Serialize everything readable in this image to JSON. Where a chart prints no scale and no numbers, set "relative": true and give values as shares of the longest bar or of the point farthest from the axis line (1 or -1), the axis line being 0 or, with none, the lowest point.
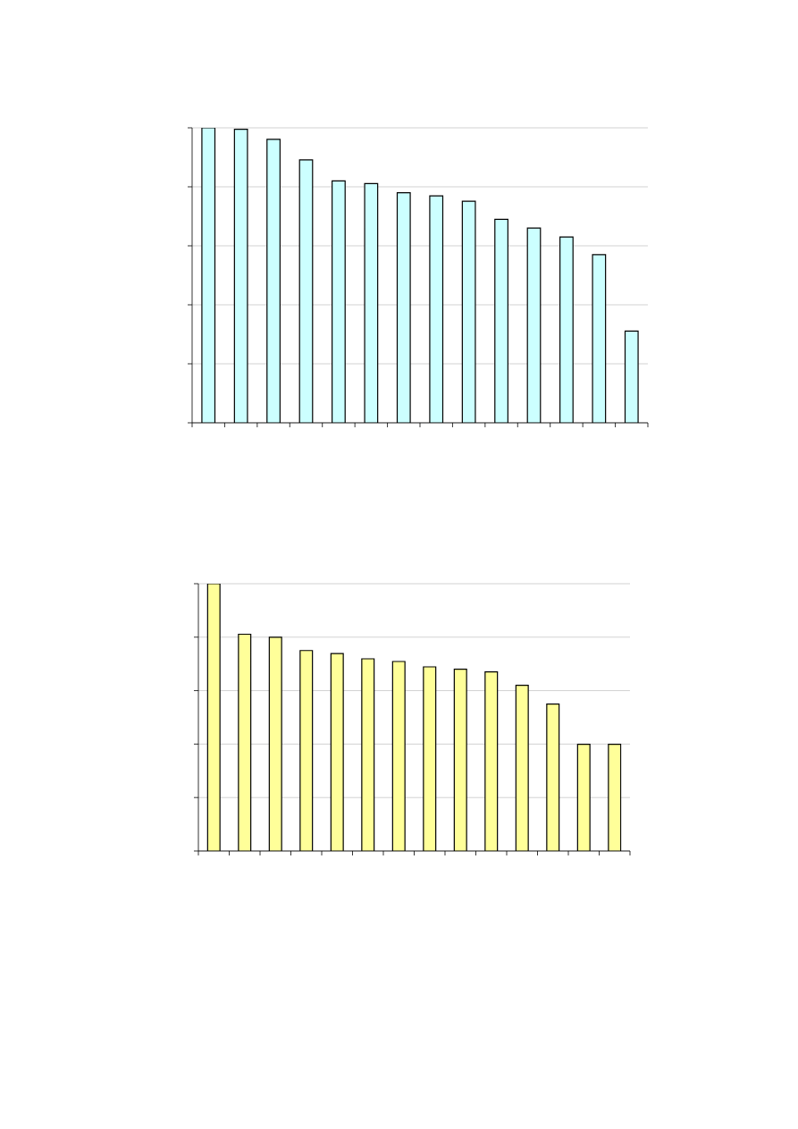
{
  "chart_data": [
    {
      "type": "bar",
      "relative": true,
      "categories": [
        null,
        null,
        null,
        null,
        null,
        null,
        null,
        null,
        null,
        null,
        null,
        null,
        null,
        null
      ],
      "values": [
        1,
        0.995,
        0.961,
        0.891,
        0.82,
        0.811,
        0.78,
        0.769,
        0.751,
        0.69,
        0.66,
        0.63,
        0.57,
        0.311
      ],
      "color": "#ccffff",
      "grid": "y"
    },
    {
      "type": "bar",
      "relative": true,
      "categories": [
        null,
        null,
        null,
        null,
        null,
        null,
        null,
        null,
        null,
        null,
        null,
        null,
        null,
        null
      ],
      "values": [
        1,
        0.811,
        0.8,
        0.75,
        0.739,
        0.719,
        0.709,
        0.689,
        0.68,
        0.67,
        0.62,
        0.55,
        0.399,
        0.399
      ],
      "color": "#ffff99",
      "grid": "y"
    }
  ]
}
